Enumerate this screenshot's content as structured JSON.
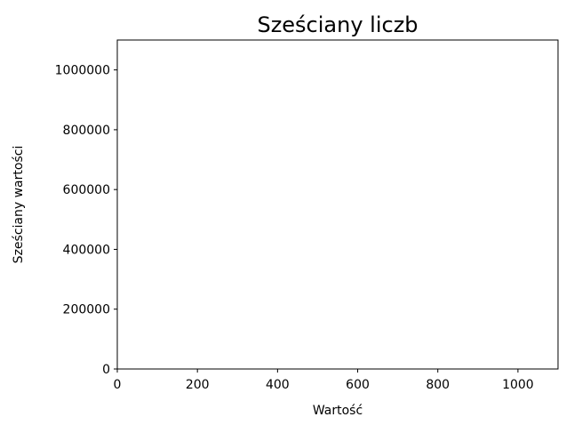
{
  "chart_data": {
    "type": "line",
    "title": "Sześciany liczb",
    "xlabel": "Wartość",
    "ylabel": "Sześciany wartości",
    "xlim": [
      0,
      1100
    ],
    "ylim": [
      0,
      1100000
    ],
    "xticks": [
      0,
      200,
      400,
      600,
      800,
      1000
    ],
    "yticks": [
      0,
      200000,
      400000,
      600000,
      800000,
      1000000
    ],
    "xtick_labels": [
      "0",
      "200",
      "400",
      "600",
      "800",
      "1000"
    ],
    "ytick_labels": [
      "0",
      "200000",
      "400000",
      "600000",
      "800000",
      "1000000"
    ],
    "series": [],
    "grid": false,
    "colors": {
      "axes": "#000000",
      "background": "#ffffff"
    }
  }
}
